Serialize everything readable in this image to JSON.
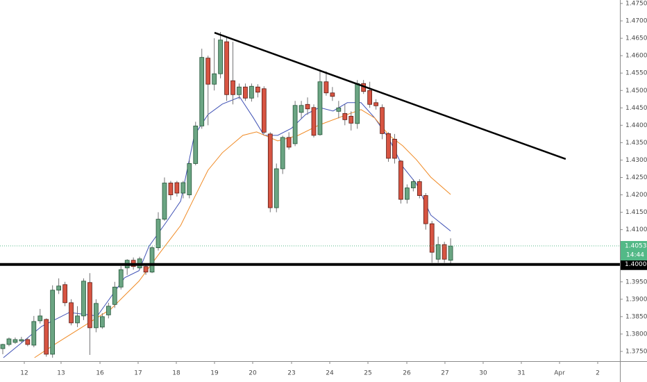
{
  "chart_data": {
    "type": "candlestick",
    "up_color": "#6ba583",
    "down_color": "#d75442",
    "up_border": "#225437",
    "down_border": "#5b1a13",
    "wick_color": "#737375",
    "x": [
      0,
      1,
      2,
      3,
      4,
      5,
      6,
      7,
      8,
      9,
      10,
      11,
      12,
      13,
      14,
      15,
      16,
      17,
      18,
      19,
      20,
      21,
      22,
      23,
      24,
      25,
      26,
      27,
      28,
      29,
      30,
      31,
      32,
      33,
      34,
      35,
      36,
      37,
      38,
      39,
      40,
      41,
      42,
      43,
      44,
      45,
      46,
      47,
      48,
      49,
      50,
      51,
      52,
      53,
      54,
      55,
      56,
      57,
      58,
      59,
      60,
      61,
      62,
      63,
      64,
      65,
      66,
      67,
      68,
      69,
      70,
      71,
      72
    ],
    "open": [
      1.3758,
      1.377,
      1.3776,
      1.378,
      1.3784,
      1.3768,
      1.3838,
      1.3842,
      1.3742,
      1.3926,
      1.3942,
      1.389,
      1.3832,
      1.3852,
      1.3948,
      1.3818,
      1.382,
      1.3855,
      1.3885,
      1.3935,
      1.399,
      1.4012,
      1.399,
      1.3994,
      1.3978,
      1.4048,
      1.413,
      1.4234,
      1.4235,
      1.4205,
      1.42,
      1.429,
      1.4398,
      1.4593,
      1.4518,
      1.4548,
      1.464,
      1.4528,
      1.4488,
      1.451,
      1.4478,
      1.451,
      1.4505,
      1.4375,
      1.4163,
      1.4275,
      1.4365,
      1.4347,
      1.4437,
      1.446,
      1.4451,
      1.4373,
      1.4525,
      1.4493,
      1.444,
      1.4434,
      1.4426,
      1.4405,
      1.452,
      1.45,
      1.4465,
      1.4451,
      1.4376,
      1.436,
      1.4297,
      1.4187,
      1.422,
      1.4238,
      1.4198,
      1.4117,
      1.4015,
      1.4057,
      1.4012
    ],
    "high": [
      1.3772,
      1.379,
      1.379,
      1.3792,
      1.379,
      1.3852,
      1.3872,
      1.3845,
      1.394,
      1.396,
      1.395,
      1.39,
      1.388,
      1.396,
      1.3975,
      1.39,
      1.386,
      1.389,
      1.395,
      1.3995,
      1.4015,
      1.402,
      1.4022,
      1.4,
      1.4052,
      1.415,
      1.425,
      1.424,
      1.424,
      1.424,
      1.43,
      1.441,
      1.462,
      1.46,
      1.465,
      1.4668,
      1.4655,
      1.464,
      1.452,
      1.452,
      1.452,
      1.4518,
      1.4512,
      1.438,
      1.429,
      1.437,
      1.438,
      1.447,
      1.447,
      1.448,
      1.446,
      1.456,
      1.4555,
      1.451,
      1.447,
      1.446,
      1.444,
      1.453,
      1.453,
      1.4525,
      1.4475,
      1.446,
      1.438,
      1.4375,
      1.43,
      1.423,
      1.4245,
      1.4245,
      1.4205,
      1.4125,
      1.408,
      1.4065,
      1.4075
    ],
    "low": [
      1.3742,
      1.3765,
      1.3772,
      1.3776,
      1.3765,
      1.3762,
      1.383,
      1.3735,
      1.3732,
      1.3915,
      1.388,
      1.3825,
      1.382,
      1.384,
      1.374,
      1.3805,
      1.3815,
      1.3845,
      1.3875,
      1.3928,
      1.397,
      1.3985,
      1.3985,
      1.397,
      1.3975,
      1.404,
      1.4125,
      1.4185,
      1.4195,
      1.419,
      1.419,
      1.4285,
      1.439,
      1.44,
      1.45,
      1.4535,
      1.447,
      1.446,
      1.4475,
      1.447,
      1.4468,
      1.448,
      1.4375,
      1.415,
      1.415,
      1.426,
      1.433,
      1.434,
      1.442,
      1.443,
      1.4365,
      1.437,
      1.4485,
      1.447,
      1.442,
      1.44,
      1.4385,
      1.439,
      1.449,
      1.445,
      1.4445,
      1.436,
      1.4295,
      1.429,
      1.4175,
      1.4175,
      1.421,
      1.419,
      1.41,
      1.4005,
      1.4005,
      1.4005,
      1.4
    ],
    "close": [
      1.377,
      1.3786,
      1.3784,
      1.3784,
      1.377,
      1.3836,
      1.3852,
      1.3742,
      1.3926,
      1.3938,
      1.389,
      1.3832,
      1.3852,
      1.3952,
      1.3818,
      1.3888,
      1.385,
      1.388,
      1.3935,
      1.3985,
      1.4012,
      1.3994,
      1.4016,
      1.3978,
      1.4048,
      1.413,
      1.4234,
      1.42,
      1.4205,
      1.4235,
      1.429,
      1.4398,
      1.4595,
      1.4518,
      1.4548,
      1.4645,
      1.4488,
      1.4488,
      1.451,
      1.4478,
      1.4512,
      1.4495,
      1.438,
      1.4163,
      1.4275,
      1.4365,
      1.4337,
      1.4457,
      1.4457,
      1.4447,
      1.4371,
      1.4525,
      1.4493,
      1.4483,
      1.445,
      1.4416,
      1.4406,
      1.452,
      1.4497,
      1.446,
      1.4456,
      1.4376,
      1.4305,
      1.4305,
      1.4187,
      1.422,
      1.4238,
      1.4198,
      1.4117,
      1.4035,
      1.4057,
      1.4015,
      1.4053
    ],
    "lines": [
      {
        "color": "#3f51b5",
        "x": [
          0.1,
          6.25,
          10.7,
          15.2,
          19.6,
          21.9,
          23.5,
          26.3,
          28.6,
          30.8,
          33,
          35.3,
          38.1,
          40.3,
          42,
          44.2,
          46.4,
          48.7,
          50.9,
          53.1,
          55.4,
          57.6,
          59.8,
          62.1,
          64.3,
          66.5,
          68.8,
          72
        ],
        "values": [
          1.3732,
          1.3822,
          1.3862,
          1.3852,
          1.3962,
          1.3982,
          1.4052,
          1.4122,
          1.4182,
          1.4371,
          1.4431,
          1.4461,
          1.4481,
          1.4421,
          1.4371,
          1.4371,
          1.4391,
          1.4431,
          1.4451,
          1.4441,
          1.4465,
          1.4465,
          1.4421,
          1.4361,
          1.4281,
          1.4232,
          1.4142,
          1.4096
        ]
      },
      {
        "color": "#f08a24",
        "x": [
          5.1,
          8.5,
          12.95,
          17.4,
          21.9,
          25.2,
          28.6,
          30.8,
          33,
          35.3,
          38.6,
          40.8,
          44.2,
          47.5,
          50.9,
          55.4,
          57.6,
          59.8,
          62.1,
          64.3,
          66.5,
          68.8,
          72
        ],
        "values": [
          1.3732,
          1.3772,
          1.3822,
          1.3872,
          1.3952,
          1.4032,
          1.4112,
          1.4192,
          1.4271,
          1.4321,
          1.4371,
          1.4381,
          1.4355,
          1.4371,
          1.4401,
          1.4431,
          1.4445,
          1.4421,
          1.4371,
          1.4341,
          1.4301,
          1.4251,
          1.4201
        ]
      }
    ],
    "trendline": {
      "x": [
        34.04,
        90.5
      ],
      "values": [
        1.4666,
        1.4303
      ]
    },
    "level": {
      "value": 1.4,
      "label": "1.40000"
    },
    "current_price": {
      "value": 1.40534,
      "label": "1.40534"
    },
    "countdown": "14:44",
    "xlim": [
      -0.446,
      99.22
    ],
    "ylim": [
      1.3722,
      1.476
    ],
    "xticks": [
      {
        "value": 3.46,
        "label": "12"
      },
      {
        "value": 9.37,
        "label": "13"
      },
      {
        "value": 15.63,
        "label": "16"
      },
      {
        "value": 21.76,
        "label": "17"
      },
      {
        "value": 27.9,
        "label": "18"
      },
      {
        "value": 34.04,
        "label": "19"
      },
      {
        "value": 40.18,
        "label": "20"
      },
      {
        "value": 46.43,
        "label": "23"
      },
      {
        "value": 52.57,
        "label": "24"
      },
      {
        "value": 58.71,
        "label": "25"
      },
      {
        "value": 64.96,
        "label": "26"
      },
      {
        "value": 71.09,
        "label": "27"
      },
      {
        "value": 77.23,
        "label": "30"
      },
      {
        "value": 83.37,
        "label": "31"
      },
      {
        "value": 89.51,
        "label": "Apr"
      },
      {
        "value": 95.65,
        "label": "2"
      }
    ],
    "yticks": [
      {
        "value": 1.475,
        "label": "1.47500"
      },
      {
        "value": 1.47,
        "label": "1.47000"
      },
      {
        "value": 1.465,
        "label": "1.46500"
      },
      {
        "value": 1.46,
        "label": "1.46000"
      },
      {
        "value": 1.455,
        "label": "1.45500"
      },
      {
        "value": 1.45,
        "label": "1.45000"
      },
      {
        "value": 1.445,
        "label": "1.44500"
      },
      {
        "value": 1.44,
        "label": "1.44000"
      },
      {
        "value": 1.435,
        "label": "1.43500"
      },
      {
        "value": 1.43,
        "label": "1.43000"
      },
      {
        "value": 1.425,
        "label": "1.42500"
      },
      {
        "value": 1.42,
        "label": "1.42000"
      },
      {
        "value": 1.415,
        "label": "1.41500"
      },
      {
        "value": 1.41,
        "label": "1.41000"
      },
      {
        "value": 1.405,
        "label": "1.40500"
      },
      {
        "value": 1.4,
        "label": "1.40000"
      },
      {
        "value": 1.395,
        "label": "1.39500"
      },
      {
        "value": 1.39,
        "label": "1.39000"
      },
      {
        "value": 1.385,
        "label": "1.38500"
      },
      {
        "value": 1.38,
        "label": "1.38000"
      },
      {
        "value": 1.375,
        "label": "1.37500"
      }
    ]
  }
}
